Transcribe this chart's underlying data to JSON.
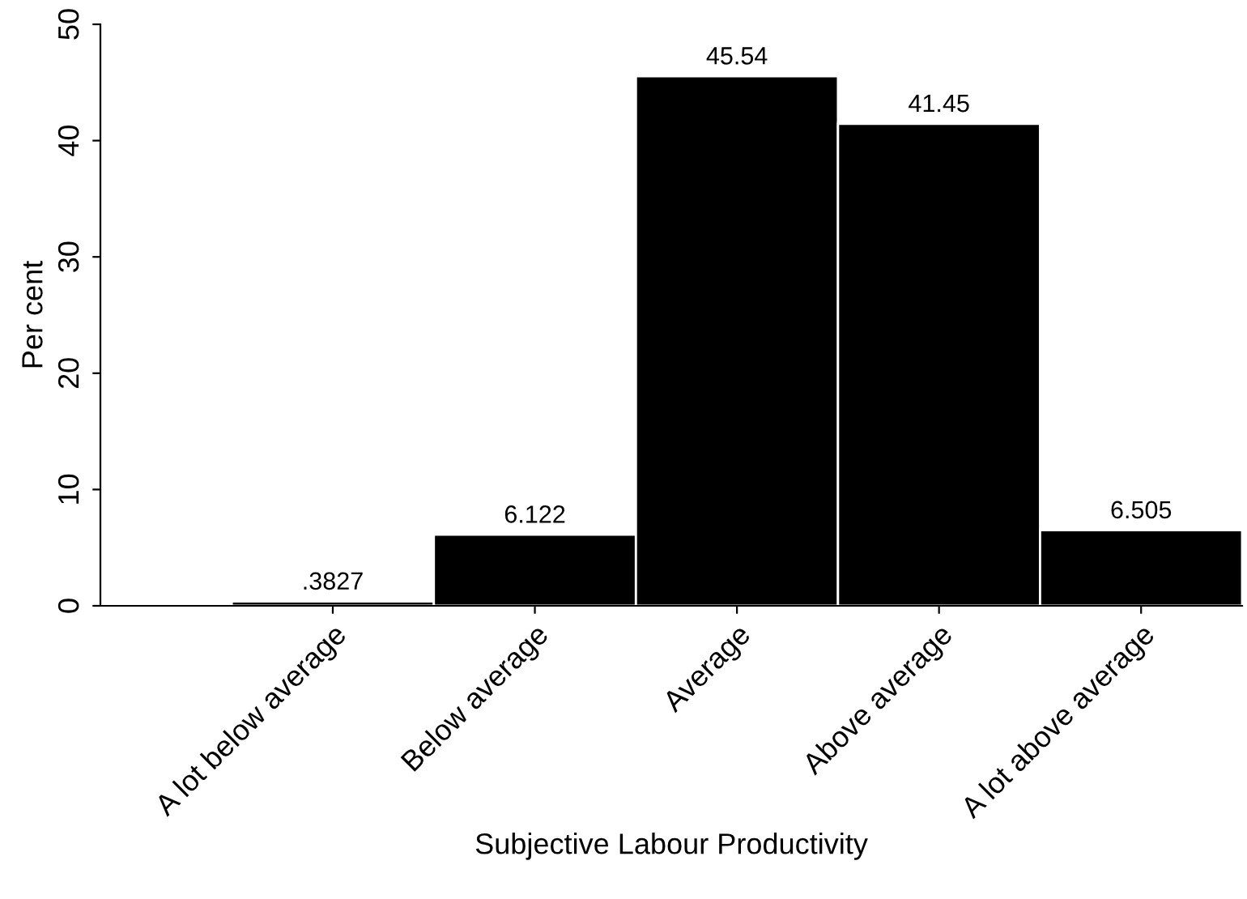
{
  "chart_data": {
    "type": "bar",
    "xlabel": "Subjective Labour Productivity",
    "ylabel": "Per cent",
    "categories": [
      "A lot below average",
      "Below average",
      "Average",
      "Above average",
      "A lot above average"
    ],
    "values": [
      0.3827,
      6.122,
      45.54,
      41.45,
      6.505
    ],
    "value_labels": [
      ".3827",
      "6.122",
      "45.54",
      "41.45",
      "6.505"
    ],
    "color": "#000000",
    "ylim": [
      0,
      50
    ],
    "yticks": [
      0,
      10,
      20,
      30,
      40,
      50
    ],
    "grid": false,
    "legend": false
  }
}
